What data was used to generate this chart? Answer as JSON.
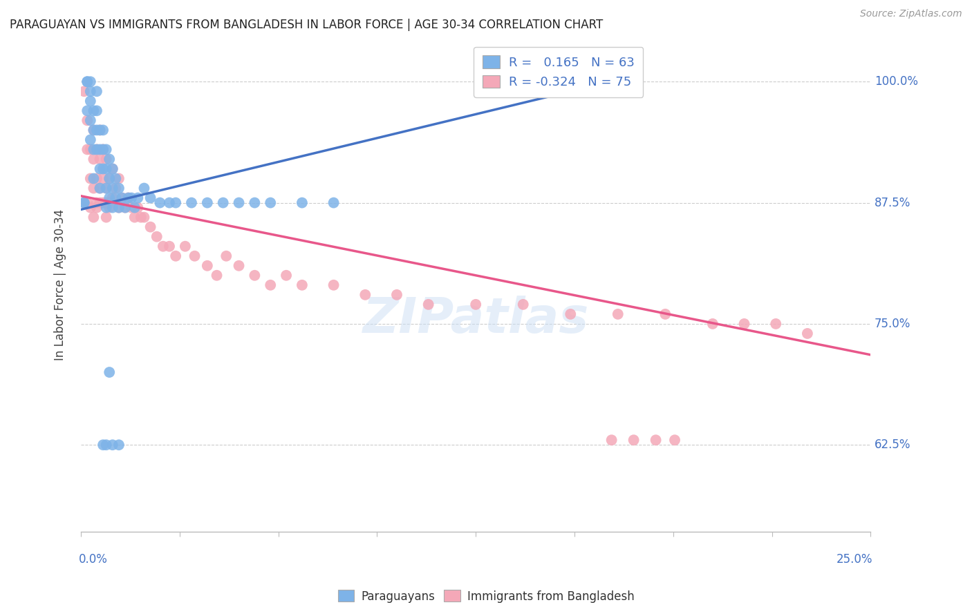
{
  "title": "PARAGUAYAN VS IMMIGRANTS FROM BANGLADESH IN LABOR FORCE | AGE 30-34 CORRELATION CHART",
  "source": "Source: ZipAtlas.com",
  "ylabel": "In Labor Force | Age 30-34",
  "ylabel_ticks": [
    "62.5%",
    "75.0%",
    "87.5%",
    "100.0%"
  ],
  "ylabel_vals": [
    0.625,
    0.75,
    0.875,
    1.0
  ],
  "xlim": [
    0.0,
    0.25
  ],
  "ylim": [
    0.535,
    1.045
  ],
  "r_blue": 0.165,
  "n_blue": 63,
  "r_pink": -0.324,
  "n_pink": 75,
  "blue_color": "#7EB3E8",
  "pink_color": "#F4A8B8",
  "trend_blue": "#4472C4",
  "trend_pink": "#E8578A",
  "legend_text_blue": "R =   0.165   N = 63",
  "legend_text_pink": "R = -0.324   N = 75",
  "blue_trend_x0": 0.0,
  "blue_trend_y0": 0.868,
  "blue_trend_x1": 0.155,
  "blue_trend_y1": 0.99,
  "pink_trend_x0": 0.0,
  "pink_trend_y0": 0.882,
  "pink_trend_x1": 0.25,
  "pink_trend_y1": 0.718,
  "paraguayan_x": [
    0.001,
    0.001,
    0.002,
    0.002,
    0.002,
    0.003,
    0.003,
    0.003,
    0.003,
    0.003,
    0.004,
    0.004,
    0.004,
    0.004,
    0.005,
    0.005,
    0.005,
    0.005,
    0.006,
    0.006,
    0.006,
    0.006,
    0.007,
    0.007,
    0.007,
    0.008,
    0.008,
    0.008,
    0.008,
    0.009,
    0.009,
    0.009,
    0.01,
    0.01,
    0.01,
    0.011,
    0.011,
    0.012,
    0.012,
    0.013,
    0.014,
    0.015,
    0.016,
    0.017,
    0.018,
    0.02,
    0.022,
    0.025,
    0.028,
    0.03,
    0.035,
    0.04,
    0.045,
    0.05,
    0.055,
    0.06,
    0.07,
    0.08,
    0.01,
    0.012,
    0.007,
    0.008,
    0.009
  ],
  "paraguayan_y": [
    0.875,
    0.875,
    1.0,
    1.0,
    0.97,
    1.0,
    0.99,
    0.98,
    0.96,
    0.94,
    0.97,
    0.95,
    0.93,
    0.9,
    0.99,
    0.97,
    0.95,
    0.93,
    0.95,
    0.93,
    0.91,
    0.89,
    0.95,
    0.93,
    0.91,
    0.93,
    0.91,
    0.89,
    0.87,
    0.92,
    0.9,
    0.88,
    0.91,
    0.89,
    0.87,
    0.9,
    0.88,
    0.89,
    0.87,
    0.88,
    0.87,
    0.88,
    0.88,
    0.87,
    0.88,
    0.89,
    0.88,
    0.875,
    0.875,
    0.875,
    0.875,
    0.875,
    0.875,
    0.875,
    0.875,
    0.875,
    0.875,
    0.875,
    0.625,
    0.625,
    0.625,
    0.625,
    0.7
  ],
  "bangladesh_x": [
    0.001,
    0.001,
    0.002,
    0.002,
    0.002,
    0.003,
    0.003,
    0.003,
    0.004,
    0.004,
    0.004,
    0.004,
    0.005,
    0.005,
    0.005,
    0.006,
    0.006,
    0.006,
    0.007,
    0.007,
    0.008,
    0.008,
    0.008,
    0.009,
    0.009,
    0.01,
    0.01,
    0.011,
    0.012,
    0.012,
    0.013,
    0.014,
    0.015,
    0.016,
    0.017,
    0.018,
    0.019,
    0.02,
    0.022,
    0.024,
    0.026,
    0.028,
    0.03,
    0.033,
    0.036,
    0.04,
    0.043,
    0.046,
    0.05,
    0.055,
    0.06,
    0.065,
    0.07,
    0.08,
    0.09,
    0.1,
    0.11,
    0.125,
    0.14,
    0.155,
    0.17,
    0.185,
    0.2,
    0.21,
    0.22,
    0.23,
    0.168,
    0.175,
    0.182,
    0.188,
    0.005,
    0.006,
    0.007,
    0.008,
    0.009
  ],
  "bangladesh_y": [
    0.875,
    0.99,
    0.875,
    0.93,
    0.96,
    0.93,
    0.9,
    0.87,
    0.95,
    0.92,
    0.89,
    0.86,
    0.93,
    0.9,
    0.87,
    0.95,
    0.92,
    0.89,
    0.93,
    0.9,
    0.92,
    0.89,
    0.86,
    0.9,
    0.87,
    0.91,
    0.88,
    0.89,
    0.9,
    0.87,
    0.88,
    0.87,
    0.88,
    0.87,
    0.86,
    0.87,
    0.86,
    0.86,
    0.85,
    0.84,
    0.83,
    0.83,
    0.82,
    0.83,
    0.82,
    0.81,
    0.8,
    0.82,
    0.81,
    0.8,
    0.79,
    0.8,
    0.79,
    0.79,
    0.78,
    0.78,
    0.77,
    0.77,
    0.77,
    0.76,
    0.76,
    0.76,
    0.75,
    0.75,
    0.75,
    0.74,
    0.63,
    0.63,
    0.63,
    0.63,
    0.875,
    0.875,
    0.875,
    0.875,
    0.875
  ]
}
